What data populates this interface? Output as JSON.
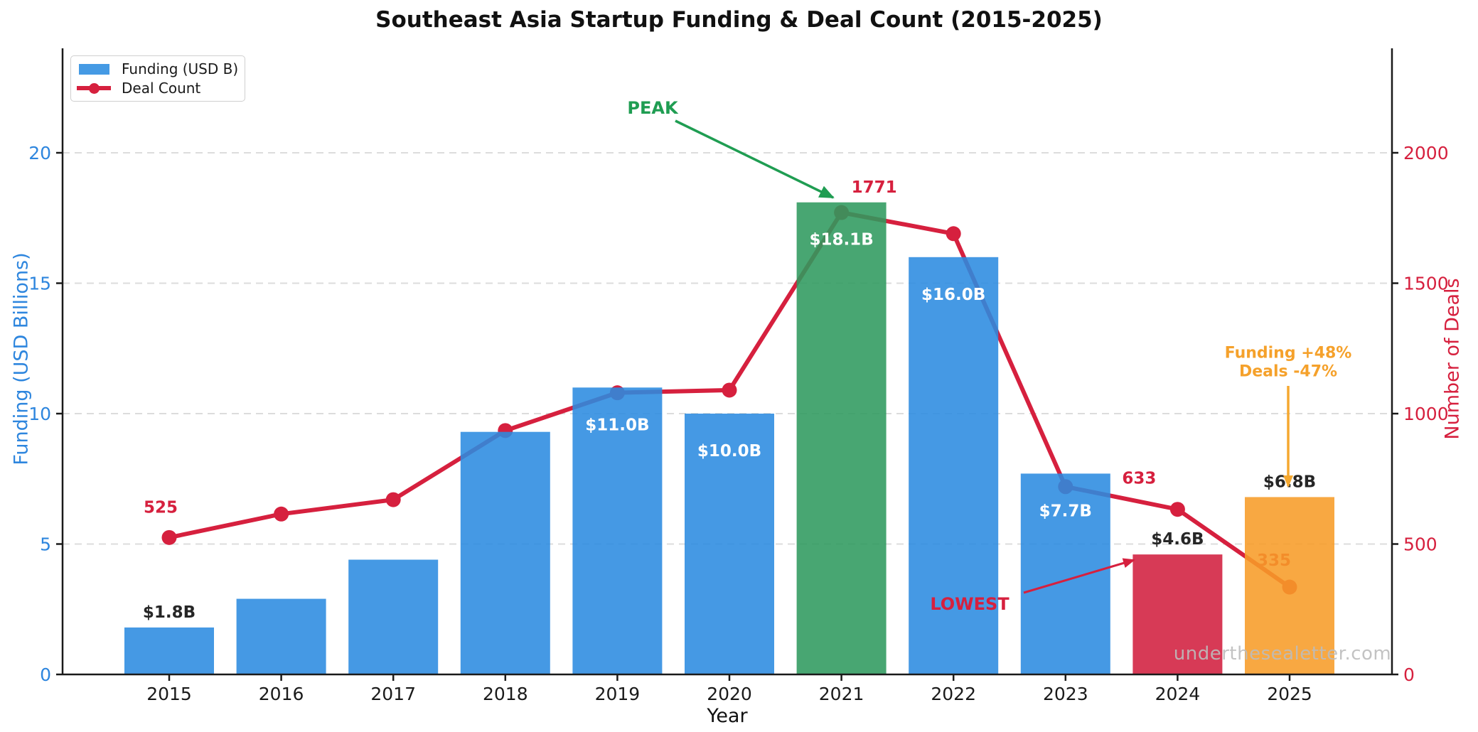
{
  "title": "Southeast Asia Startup Funding & Deal Count (2015-2025)",
  "legend": {
    "funding_label": "Funding (USD B)",
    "deals_label": "Deal Count"
  },
  "axes": {
    "x_label": "Year",
    "y_left_label": "Funding (USD Billions)",
    "y_right_label": "Number of Deals",
    "y_left_ticks": [
      0,
      5,
      10,
      15,
      20
    ],
    "y_right_ticks": [
      0,
      500,
      1000,
      1500,
      2000
    ]
  },
  "chart_data": {
    "type": "bar+line dual-axis",
    "categories": [
      2015,
      2016,
      2017,
      2018,
      2019,
      2020,
      2021,
      2022,
      2023,
      2024,
      2025
    ],
    "series": [
      {
        "name": "Funding (USD B)",
        "type": "bar",
        "axis": "left",
        "values": [
          1.8,
          2.9,
          4.4,
          9.3,
          11.0,
          10.0,
          18.1,
          16.0,
          7.7,
          4.6,
          6.8
        ]
      },
      {
        "name": "Deal Count",
        "type": "line",
        "axis": "right",
        "values": [
          525,
          615,
          670,
          935,
          1080,
          1090,
          1771,
          1690,
          720,
          633,
          335
        ]
      }
    ],
    "ylim_left": [
      0,
      20
    ],
    "ylim_right": [
      0,
      2000
    ],
    "grid": "horizontal dashed",
    "legend_position": "upper left",
    "bar_highlight_colors": {
      "2021": "green",
      "2024": "crimson",
      "2025": "orange"
    },
    "bar_value_labels": [
      {
        "year": 2015,
        "text": "$1.8B",
        "placement": "above"
      },
      {
        "year": 2019,
        "text": "$11.0B",
        "placement": "inside"
      },
      {
        "year": 2020,
        "text": "$10.0B",
        "placement": "inside"
      },
      {
        "year": 2021,
        "text": "$18.1B",
        "placement": "inside"
      },
      {
        "year": 2022,
        "text": "$16.0B",
        "placement": "inside"
      },
      {
        "year": 2023,
        "text": "$7.7B",
        "placement": "inside"
      },
      {
        "year": 2024,
        "text": "$4.6B",
        "placement": "above"
      },
      {
        "year": 2025,
        "text": "$6.8B",
        "placement": "above"
      }
    ],
    "deal_value_labels": [
      {
        "year": 2015,
        "text": "525"
      },
      {
        "year": 2021,
        "text": "1771"
      },
      {
        "year": 2024,
        "text": "633"
      },
      {
        "year": 2025,
        "text": "335"
      }
    ]
  },
  "annotations": {
    "peak": "PEAK",
    "lowest": "LOWEST",
    "note_line1": "Funding +48%",
    "note_line2": "Deals -47%"
  },
  "watermark": "underthesealetter.com",
  "colors": {
    "bar_blue": "#2B8BE0",
    "bar_green": "#2F9A5F",
    "bar_crimson": "#D21F3F",
    "bar_orange": "#F79C28",
    "line_crimson": "#D6203E",
    "axis_left_text": "#2E86DE",
    "axis_right_text": "#D6203E",
    "annotation_green": "#1F9D52",
    "annotation_orange": "#F5A830",
    "label_dark": "#262626",
    "gridline": "#DCDCDC",
    "watermark_gray": "#BDBDBD"
  }
}
